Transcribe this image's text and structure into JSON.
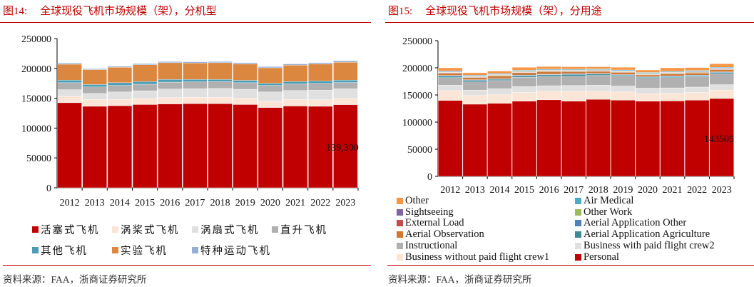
{
  "left": {
    "figure": "图14:",
    "title": "全球现役飞机市场规模（架），分机型",
    "source": "资料来源：FAA，浙商证券研究所"
  },
  "right": {
    "figure": "图15:",
    "title": "全球现役飞机市场规模（架），分用途",
    "source": "资料来源：FAA，浙商证券研究所"
  },
  "chart_data": [
    {
      "type": "bar",
      "stacked": true,
      "title": "",
      "xlabel": "",
      "ylabel": "",
      "ylim": [
        0,
        250000
      ],
      "yticks": [
        "0",
        "50000",
        "100000",
        "150000",
        "200000",
        "250000"
      ],
      "grid": false,
      "legend_position": "bottom",
      "categories": [
        "2012",
        "2013",
        "2014",
        "2015",
        "2016",
        "2017",
        "2018",
        "2019",
        "2020",
        "2021",
        "2022",
        "2023"
      ],
      "annotation": "139,300",
      "series": [
        {
          "name": "活塞式飞机",
          "color": "#c00000",
          "values": [
            142500,
            136500,
            137500,
            139500,
            140500,
            141000,
            141000,
            139500,
            134500,
            137000,
            136500,
            139300
          ]
        },
        {
          "name": "涡桨式飞机",
          "color": "#fbe5d6",
          "values": [
            10800,
            11500,
            10500,
            10000,
            10500,
            10500,
            10500,
            10500,
            11000,
            11000,
            11000,
            10500
          ]
        },
        {
          "name": "涡扇式飞机",
          "color": "#e0e0e0",
          "values": [
            11100,
            10000,
            12500,
            13000,
            14500,
            14500,
            15000,
            15000,
            15000,
            15000,
            16000,
            16000
          ]
        },
        {
          "name": "直升飞机",
          "color": "#b0b0b0",
          "values": [
            11600,
            11000,
            11000,
            11000,
            11500,
            11500,
            11500,
            11000,
            11000,
            11000,
            11500,
            10500
          ]
        },
        {
          "name": "其他飞机",
          "color": "#4a9db5",
          "values": [
            4300,
            4000,
            4500,
            4500,
            4500,
            4000,
            3500,
            4000,
            3500,
            4000,
            4000,
            4000
          ]
        },
        {
          "name": "实验飞机",
          "color": "#dc8740",
          "values": [
            26700,
            25000,
            26000,
            28000,
            28000,
            27500,
            28000,
            27500,
            26000,
            27500,
            28500,
            30000
          ]
        },
        {
          "name": "特种运动飞机",
          "color": "#94aed6",
          "values": [
            2000,
            1500,
            1500,
            2000,
            2000,
            2000,
            2000,
            2000,
            2000,
            2000,
            2000,
            2500
          ]
        }
      ]
    },
    {
      "type": "bar",
      "stacked": true,
      "title": "",
      "xlabel": "",
      "ylabel": "",
      "ylim": [
        0,
        250000
      ],
      "yticks": [
        "0",
        "50000",
        "100000",
        "150000",
        "200000",
        "250000"
      ],
      "grid": false,
      "legend_position": "bottom",
      "categories": [
        "2012",
        "2013",
        "2014",
        "2015",
        "2016",
        "2017",
        "2018",
        "2019",
        "2020",
        "2021",
        "2022",
        "2023"
      ],
      "annotation": "143505",
      "series": [
        {
          "name": "Personal",
          "color": "#c00000",
          "values": [
            140000,
            133000,
            134500,
            138500,
            141000,
            138500,
            142000,
            140500,
            138500,
            139000,
            140500,
            143505
          ]
        },
        {
          "name": "Business without paid flight crew1",
          "color": "#fbe5d6",
          "values": [
            18000,
            16000,
            16000,
            16000,
            16000,
            18000,
            15000,
            15000,
            14000,
            14000,
            14000,
            15500
          ]
        },
        {
          "name": "Business with paid flight crew2",
          "color": "#e0e0e0",
          "values": [
            10000,
            10000,
            11000,
            11000,
            10000,
            11000,
            11000,
            11000,
            10000,
            10000,
            10000,
            10000
          ]
        },
        {
          "name": "Instructional",
          "color": "#b0b0b0",
          "values": [
            14000,
            15000,
            15000,
            17000,
            17000,
            17000,
            18000,
            18000,
            18000,
            19000,
            19000,
            20000
          ]
        },
        {
          "name": "Aerial Application Agriculture",
          "color": "#3a8a9a",
          "values": [
            3000,
            3000,
            2500,
            3000,
            3000,
            3500,
            2500,
            2000,
            2000,
            2000,
            2000,
            2500
          ]
        },
        {
          "name": "Aerial Application Other",
          "color": "#4f81bd",
          "values": [
            1000,
            1000,
            1000,
            1000,
            1000,
            1000,
            1000,
            1000,
            1000,
            1000,
            1000,
            1000
          ]
        },
        {
          "name": "Aerial Observation",
          "color": "#cc7a3a",
          "values": [
            4000,
            4000,
            5000,
            4500,
            5000,
            4000,
            4000,
            4000,
            3500,
            4000,
            4000,
            4000
          ]
        },
        {
          "name": "External Load",
          "color": "#c0504d",
          "values": [
            1000,
            1000,
            1000,
            1000,
            1000,
            1000,
            1000,
            1000,
            1000,
            1000,
            1000,
            1000
          ]
        },
        {
          "name": "Other Work",
          "color": "#9bbb59",
          "values": [
            1000,
            1000,
            1000,
            1000,
            1000,
            1000,
            1000,
            1000,
            1000,
            1000,
            1000,
            1000
          ]
        },
        {
          "name": "Sightseeing",
          "color": "#8064a2",
          "values": [
            1000,
            1000,
            1000,
            1000,
            1000,
            1000,
            1000,
            1000,
            1000,
            1000,
            1000,
            1000
          ]
        },
        {
          "name": "Air Medical",
          "color": "#4bacc6",
          "values": [
            1500,
            1500,
            1500,
            1500,
            1500,
            1500,
            1500,
            1500,
            1500,
            1500,
            1500,
            1500
          ]
        },
        {
          "name": "Other",
          "color": "#f79646",
          "values": [
            5500,
            4500,
            4500,
            5500,
            5000,
            4500,
            4000,
            5000,
            4500,
            6500,
            5500,
            6500
          ]
        }
      ]
    }
  ]
}
